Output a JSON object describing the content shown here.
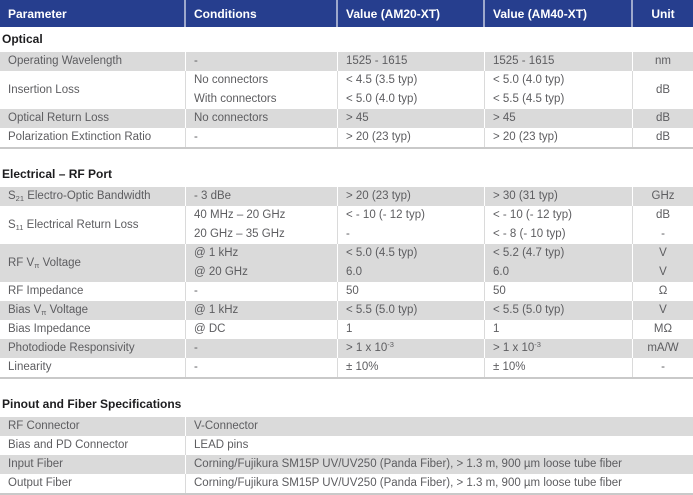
{
  "header": {
    "columns": [
      "Parameter",
      "Conditions",
      "Value (AM20-XT)",
      "Value (AM40-XT)",
      "Unit"
    ]
  },
  "colors": {
    "header_bg": "#263e8e",
    "header_text": "#ffffff",
    "row_shade_bg": "#dadada",
    "body_text": "#5d5d60",
    "section_title_text": "#1d1d1f",
    "segment_divider": "#c9c9c9"
  },
  "sections": [
    {
      "title": "Optical",
      "rows": [
        {
          "shaded": true,
          "parameter": "Operating Wavelength",
          "conditions": [
            "-"
          ],
          "am20": [
            "1525 - 1615"
          ],
          "am40": [
            "1525 - 1615"
          ],
          "unit": [
            "nm"
          ]
        },
        {
          "shaded": false,
          "parameter": "Insertion Loss",
          "conditions": [
            "No connectors",
            "With connectors"
          ],
          "am20": [
            "< 4.5 (3.5 typ)",
            "< 5.0 (4.0 typ)"
          ],
          "am40": [
            "< 5.0 (4.0 typ)",
            "< 5.5 (4.5 typ)"
          ],
          "unit": [
            "dB"
          ]
        },
        {
          "shaded": true,
          "parameter": "Optical Return Loss",
          "conditions": [
            "No connectors"
          ],
          "am20": [
            "> 45"
          ],
          "am40": [
            "> 45"
          ],
          "unit": [
            "dB"
          ]
        },
        {
          "shaded": false,
          "parameter": "Polarization Extinction Ratio",
          "conditions": [
            "-"
          ],
          "am20": [
            "> 20 (23 typ)"
          ],
          "am40": [
            "> 20 (23 typ)"
          ],
          "unit": [
            "dB"
          ]
        }
      ]
    },
    {
      "title": "Electrical – RF Port",
      "rows": [
        {
          "shaded": true,
          "parameter": "S~21~ Electro-Optic Bandwidth",
          "conditions": [
            "- 3 dBe"
          ],
          "am20": [
            "> 20 (23 typ)"
          ],
          "am40": [
            "> 30 (31 typ)"
          ],
          "unit": [
            "GHz"
          ]
        },
        {
          "shaded": false,
          "parameter": "S~11~ Electrical Return Loss",
          "conditions": [
            "40 MHz – 20 GHz",
            "20 GHz – 35 GHz"
          ],
          "am20": [
            "< - 10 (- 12 typ)",
            "-"
          ],
          "am40": [
            "< - 10 (- 12 typ)",
            "< - 8 (- 10 typ)"
          ],
          "unit": [
            "dB",
            "-"
          ]
        },
        {
          "shaded": true,
          "parameter": "RF V~π~ Voltage",
          "conditions": [
            "@ 1 kHz",
            "@ 20 GHz"
          ],
          "am20": [
            "< 5.0 (4.5 typ)",
            "6.0"
          ],
          "am40": [
            "< 5.2 (4.7 typ)",
            "6.0"
          ],
          "unit": [
            "V",
            "V"
          ]
        },
        {
          "shaded": false,
          "parameter": "RF Impedance",
          "conditions": [
            "-"
          ],
          "am20": [
            "50"
          ],
          "am40": [
            "50"
          ],
          "unit": [
            "Ω"
          ]
        },
        {
          "shaded": true,
          "parameter": "Bias V~π~ Voltage",
          "conditions": [
            "@ 1 kHz"
          ],
          "am20": [
            "< 5.5 (5.0 typ)"
          ],
          "am40": [
            "< 5.5 (5.0 typ)"
          ],
          "unit": [
            "V"
          ]
        },
        {
          "shaded": false,
          "parameter": "Bias Impedance",
          "conditions": [
            "@ DC"
          ],
          "am20": [
            "1"
          ],
          "am40": [
            "1"
          ],
          "unit": [
            "MΩ"
          ]
        },
        {
          "shaded": true,
          "parameter": "Photodiode Responsivity",
          "conditions": [
            "-"
          ],
          "am20": [
            "> 1 x 10^-3^"
          ],
          "am40": [
            "> 1 x 10^-3^"
          ],
          "unit": [
            "mA/W"
          ]
        },
        {
          "shaded": false,
          "parameter": "Linearity",
          "conditions": [
            "-"
          ],
          "am20": [
            "± 10%"
          ],
          "am40": [
            "± 10%"
          ],
          "unit": [
            "-"
          ]
        }
      ]
    },
    {
      "title": "Pinout and Fiber Specifications",
      "rows": [
        {
          "shaded": true,
          "parameter": "RF Connector",
          "value": "V-Connector"
        },
        {
          "shaded": false,
          "parameter": "Bias and PD Connector",
          "value": "LEAD pins"
        },
        {
          "shaded": true,
          "parameter": "Input Fiber",
          "value": "Corning/Fujikura SM15P UV/UV250 (Panda Fiber), > 1.3 m, 900 µm loose tube fiber"
        },
        {
          "shaded": false,
          "parameter": "Output Fiber",
          "value": "Corning/Fujikura SM15P UV/UV250 (Panda Fiber), > 1.3 m, 900 µm loose tube fiber"
        }
      ]
    }
  ]
}
